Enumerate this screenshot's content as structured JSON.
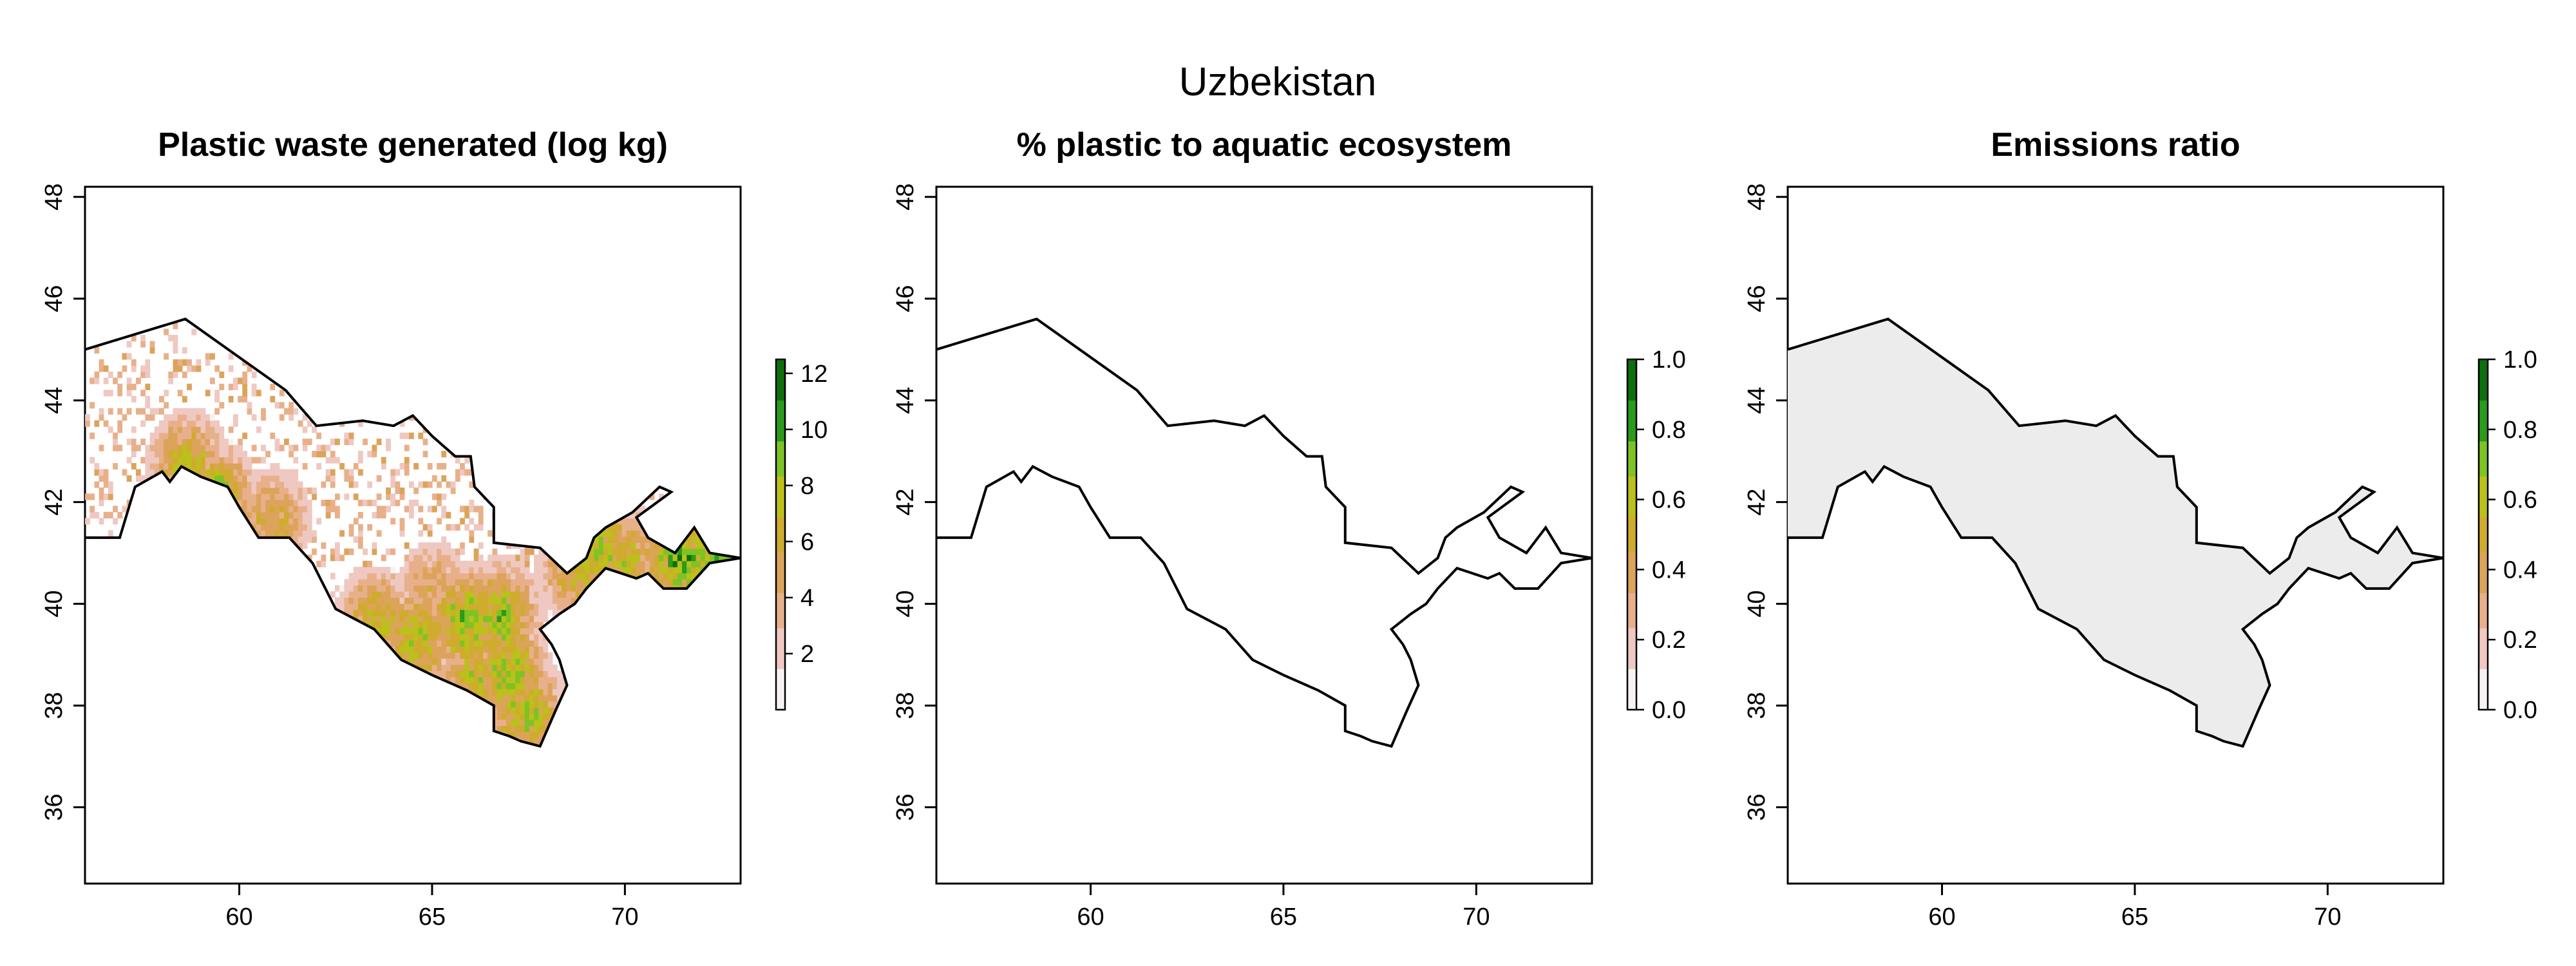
{
  "figure": {
    "title": "Uzbekistan"
  },
  "colors": {
    "scale": [
      "#f7f2f2",
      "#efc8c2",
      "#e8b08a",
      "#dca35a",
      "#cfab2e",
      "#bcc01a",
      "#7ec324",
      "#2a9c1c",
      "#0d6f0d"
    ],
    "no_data_gray": "#ececec",
    "outline": "#000000"
  },
  "chart_data": [
    {
      "type": "heatmap",
      "title": "Plastic waste generated (log kg)",
      "xlim": [
        56,
        73
      ],
      "ylim": [
        34.5,
        48.2
      ],
      "x_ticks": [
        60,
        65,
        70
      ],
      "y_ticks": [
        36,
        38,
        40,
        42,
        44,
        46,
        48
      ],
      "legend": {
        "placement": "right",
        "min": 0,
        "max": 12.5,
        "ticks": [
          2,
          4,
          6,
          8,
          10,
          12
        ]
      },
      "fill": "values"
    },
    {
      "type": "heatmap",
      "title": "% plastic to aquatic ecosystem",
      "xlim": [
        56,
        73
      ],
      "ylim": [
        34.5,
        48.2
      ],
      "x_ticks": [
        60,
        65,
        70
      ],
      "y_ticks": [
        36,
        38,
        40,
        42,
        44,
        46,
        48
      ],
      "legend": {
        "placement": "right",
        "min": 0,
        "max": 1,
        "ticks": [
          "0.0",
          "0.2",
          "0.4",
          "0.6",
          "0.8",
          "1.0"
        ]
      },
      "fill": "none"
    },
    {
      "type": "heatmap",
      "title": "Emissions ratio",
      "xlim": [
        56,
        73
      ],
      "ylim": [
        34.5,
        48.2
      ],
      "x_ticks": [
        60,
        65,
        70
      ],
      "y_ticks": [
        36,
        38,
        40,
        42,
        44,
        46,
        48
      ],
      "legend": {
        "placement": "right",
        "min": 0,
        "max": 1,
        "ticks": [
          "0.0",
          "0.2",
          "0.4",
          "0.6",
          "0.8",
          "1.0"
        ]
      },
      "fill": "zero"
    }
  ],
  "boundary": {
    "lonlat": [
      [
        56.0,
        45.0
      ],
      [
        58.6,
        45.6
      ],
      [
        61.2,
        44.2
      ],
      [
        62.0,
        43.5
      ],
      [
        63.2,
        43.6
      ],
      [
        64.0,
        43.5
      ],
      [
        64.5,
        43.7
      ],
      [
        65.0,
        43.3
      ],
      [
        65.6,
        42.9
      ],
      [
        66.0,
        42.9
      ],
      [
        66.1,
        42.3
      ],
      [
        66.6,
        41.9
      ],
      [
        66.6,
        41.2
      ],
      [
        67.8,
        41.1
      ],
      [
        68.5,
        40.6
      ],
      [
        69.0,
        40.9
      ],
      [
        69.2,
        41.3
      ],
      [
        69.5,
        41.5
      ],
      [
        70.2,
        41.8
      ],
      [
        70.9,
        42.3
      ],
      [
        71.2,
        42.2
      ],
      [
        70.3,
        41.7
      ],
      [
        70.6,
        41.3
      ],
      [
        71.3,
        41.0
      ],
      [
        71.8,
        41.5
      ],
      [
        72.2,
        41.0
      ],
      [
        73.0,
        40.9
      ],
      [
        72.2,
        40.8
      ],
      [
        71.6,
        40.3
      ],
      [
        71.0,
        40.3
      ],
      [
        70.6,
        40.6
      ],
      [
        70.3,
        40.5
      ],
      [
        69.5,
        40.7
      ],
      [
        69.0,
        40.3
      ],
      [
        68.7,
        40.0
      ],
      [
        68.3,
        39.8
      ],
      [
        67.8,
        39.5
      ],
      [
        68.1,
        39.2
      ],
      [
        68.3,
        38.9
      ],
      [
        68.5,
        38.4
      ],
      [
        68.2,
        37.9
      ],
      [
        67.8,
        37.2
      ],
      [
        67.3,
        37.3
      ],
      [
        67.0,
        37.4
      ],
      [
        66.6,
        37.5
      ],
      [
        66.6,
        38.0
      ],
      [
        65.9,
        38.3
      ],
      [
        65.0,
        38.6
      ],
      [
        64.2,
        38.9
      ],
      [
        63.5,
        39.5
      ],
      [
        62.5,
        39.9
      ],
      [
        61.9,
        40.8
      ],
      [
        61.3,
        41.3
      ],
      [
        60.5,
        41.3
      ],
      [
        60.0,
        41.9
      ],
      [
        59.7,
        42.3
      ],
      [
        59.0,
        42.5
      ],
      [
        58.5,
        42.7
      ],
      [
        58.2,
        42.4
      ],
      [
        58.0,
        42.6
      ],
      [
        57.3,
        42.3
      ],
      [
        56.9,
        41.3
      ],
      [
        56.0,
        41.3
      ]
    ]
  }
}
